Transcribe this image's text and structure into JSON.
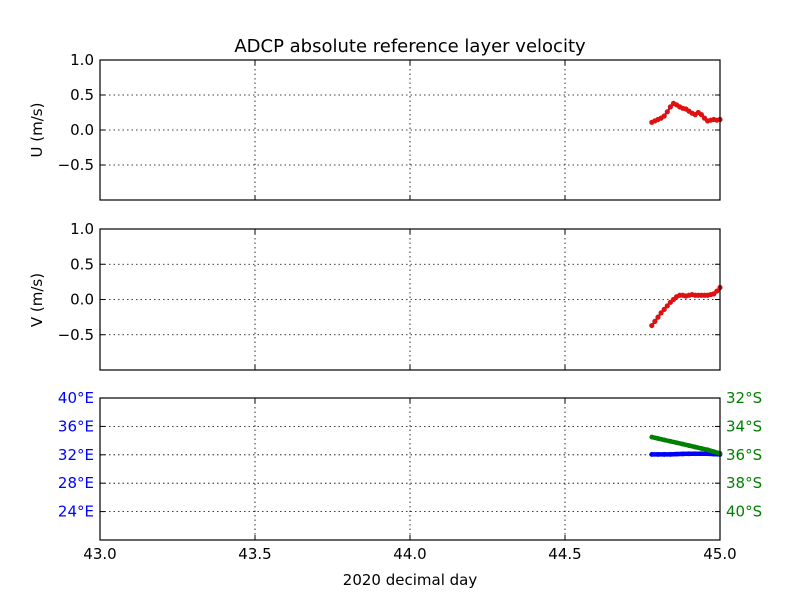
{
  "chart_data": [
    {
      "type": "line",
      "panel": "u",
      "title": "ADCP absolute reference layer velocity",
      "ylabel": "U (m/s)",
      "xlabel": "",
      "xlim": [
        43.0,
        45.0
      ],
      "ylim": [
        -1.0,
        1.0
      ],
      "yticks": [
        1.0,
        0.5,
        0.0,
        -0.5
      ],
      "ytick_labels": [
        "1.0",
        "0.5",
        "0.0",
        "−0.5"
      ],
      "xticks": [
        43.0,
        43.5,
        44.0,
        44.5,
        45.0
      ],
      "grid": true,
      "series": [
        {
          "color_line": "#1f1fd0",
          "color_marker": "#e01010",
          "x": [
            44.78,
            44.79,
            44.8,
            44.81,
            44.82,
            44.83,
            44.84,
            44.85,
            44.86,
            44.87,
            44.88,
            44.89,
            44.9,
            44.91,
            44.92,
            44.93,
            44.94,
            44.95,
            44.96,
            44.97,
            44.98,
            44.99,
            45.0
          ],
          "y": [
            0.11,
            0.13,
            0.15,
            0.17,
            0.2,
            0.26,
            0.33,
            0.38,
            0.36,
            0.33,
            0.31,
            0.3,
            0.27,
            0.24,
            0.22,
            0.25,
            0.22,
            0.17,
            0.13,
            0.14,
            0.15,
            0.14,
            0.15
          ]
        }
      ]
    },
    {
      "type": "line",
      "panel": "v",
      "ylabel": "V (m/s)",
      "xlabel": "",
      "xlim": [
        43.0,
        45.0
      ],
      "ylim": [
        -1.0,
        1.0
      ],
      "yticks": [
        1.0,
        0.5,
        0.0,
        -0.5
      ],
      "ytick_labels": [
        "1.0",
        "0.5",
        "0.0",
        "−0.5"
      ],
      "xticks": [
        43.0,
        43.5,
        44.0,
        44.5,
        45.0
      ],
      "grid": true,
      "series": [
        {
          "color_line": "#1f1fd0",
          "color_marker": "#e01010",
          "x": [
            44.78,
            44.79,
            44.8,
            44.81,
            44.82,
            44.83,
            44.84,
            44.85,
            44.86,
            44.87,
            44.88,
            44.89,
            44.9,
            44.91,
            44.92,
            44.93,
            44.94,
            44.95,
            44.96,
            44.97,
            44.98,
            44.99,
            45.0
          ],
          "y": [
            -0.37,
            -0.31,
            -0.25,
            -0.19,
            -0.14,
            -0.09,
            -0.04,
            0.0,
            0.04,
            0.06,
            0.06,
            0.05,
            0.06,
            0.07,
            0.06,
            0.06,
            0.06,
            0.06,
            0.06,
            0.07,
            0.08,
            0.12,
            0.17
          ]
        }
      ]
    },
    {
      "type": "line",
      "panel": "position",
      "xlabel": "2020 decimal day",
      "xlim": [
        43.0,
        45.0
      ],
      "xticks": [
        43.0,
        43.5,
        44.0,
        44.5,
        45.0
      ],
      "xtick_labels": [
        "43.0",
        "43.5",
        "44.0",
        "44.5",
        "45.0"
      ],
      "grid": true,
      "left_axis": {
        "color": "#0000ff",
        "ylim": [
          20.0,
          40.0
        ],
        "ticks": [
          40,
          36,
          32,
          28,
          24
        ],
        "tick_labels": [
          "40°E",
          "36°E",
          "32°E",
          "28°E",
          "24°E"
        ]
      },
      "right_axis": {
        "color": "#008000",
        "ylim": [
          -32.0,
          -42.0
        ],
        "ticks": [
          -32,
          -34,
          -36,
          -38,
          -40
        ],
        "tick_labels": [
          "32°S",
          "34°S",
          "36°S",
          "38°S",
          "40°S"
        ]
      },
      "series": [
        {
          "axis": "left",
          "color": "#0000ff",
          "x": [
            44.78,
            44.8,
            44.82,
            44.84,
            44.86,
            44.88,
            44.9,
            44.92,
            44.94,
            44.96,
            44.98,
            45.0
          ],
          "y": [
            32.05,
            32.05,
            32.05,
            32.06,
            32.1,
            32.12,
            32.14,
            32.15,
            32.16,
            32.16,
            32.1,
            32.05
          ]
        },
        {
          "axis": "right",
          "color": "#008000",
          "x": [
            44.78,
            44.8,
            44.82,
            44.84,
            44.86,
            44.88,
            44.9,
            44.92,
            44.94,
            44.96,
            44.98,
            45.0
          ],
          "y": [
            -34.75,
            -34.85,
            -34.95,
            -35.05,
            -35.15,
            -35.25,
            -35.35,
            -35.45,
            -35.55,
            -35.65,
            -35.78,
            -35.9
          ]
        }
      ]
    }
  ]
}
